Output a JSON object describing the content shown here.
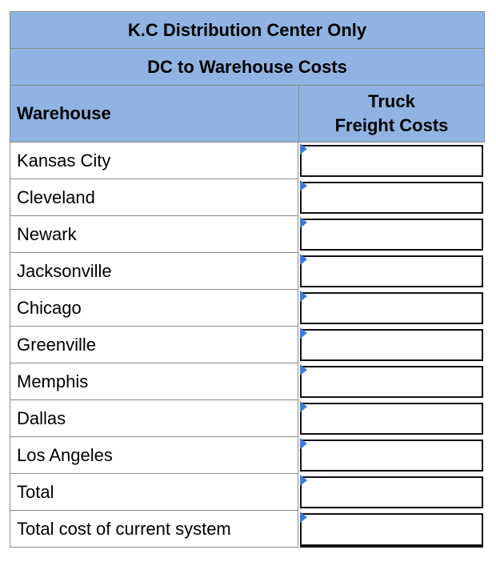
{
  "table": {
    "title": "K.C Distribution Center Only",
    "subtitle": "DC to Warehouse Costs",
    "col_warehouse": "Warehouse",
    "col_truck_line1": "Truck",
    "col_truck_line2": "Freight Costs",
    "rows": [
      {
        "label": "Kansas City",
        "value": ""
      },
      {
        "label": "Cleveland",
        "value": ""
      },
      {
        "label": "Newark",
        "value": ""
      },
      {
        "label": "Jacksonville",
        "value": ""
      },
      {
        "label": "Chicago",
        "value": ""
      },
      {
        "label": "Greenville",
        "value": ""
      },
      {
        "label": "Memphis",
        "value": ""
      },
      {
        "label": "Dallas",
        "value": ""
      },
      {
        "label": "Los Angeles",
        "value": ""
      },
      {
        "label": "Total",
        "value": ""
      },
      {
        "label": "Total cost of current system",
        "value": ""
      }
    ]
  },
  "colors": {
    "header_bg": "#8fb4e3",
    "marker": "#3a7bd5",
    "border": "#8a8a8a"
  }
}
